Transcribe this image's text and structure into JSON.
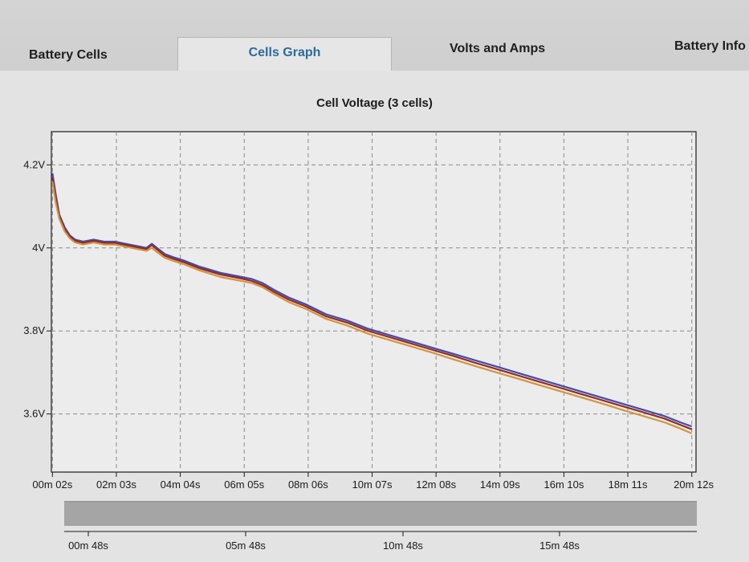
{
  "tabs": [
    {
      "label": "Battery Cells"
    },
    {
      "label": "Cells Graph",
      "active": true
    },
    {
      "label": "Volts and Amps"
    },
    {
      "label": "Battery Info"
    }
  ],
  "colors": {
    "active_tab_text": "#2a6c9a",
    "series_1": "#3e4cb0",
    "series_2": "#9a2a22",
    "series_3": "#d4953a"
  },
  "chart_data": {
    "type": "line",
    "title": "Cell Voltage (3 cells)",
    "xlabel": "",
    "ylabel": "",
    "x_unit": "seconds",
    "ylim": [
      3.46,
      4.28
    ],
    "xlim": [
      0,
      1220
    ],
    "grid": true,
    "y_ticks": [
      {
        "value": 4.2,
        "label": "4.2V"
      },
      {
        "value": 4.0,
        "label": "4V"
      },
      {
        "value": 3.8,
        "label": "3.8V"
      },
      {
        "value": 3.6,
        "label": "3.6V"
      }
    ],
    "x_ticks": [
      {
        "value": 2,
        "label": "00m 02s"
      },
      {
        "value": 123,
        "label": "02m 03s"
      },
      {
        "value": 244,
        "label": "04m 04s"
      },
      {
        "value": 365,
        "label": "06m 05s"
      },
      {
        "value": 486,
        "label": "08m 06s"
      },
      {
        "value": 607,
        "label": "10m 07s"
      },
      {
        "value": 728,
        "label": "12m 08s"
      },
      {
        "value": 849,
        "label": "14m 09s"
      },
      {
        "value": 970,
        "label": "16m 10s"
      },
      {
        "value": 1091,
        "label": "18m 11s"
      },
      {
        "value": 1212,
        "label": "20m 12s"
      }
    ],
    "series": [
      {
        "color": "#3e4cb0",
        "x": [
          2,
          8,
          15,
          25,
          35,
          45,
          60,
          80,
          100,
          120,
          140,
          160,
          180,
          190,
          200,
          215,
          230,
          250,
          280,
          320,
          360,
          380,
          400,
          420,
          450,
          480,
          520,
          560,
          600,
          640,
          680,
          720,
          760,
          800,
          840,
          880,
          920,
          960,
          1000,
          1040,
          1080,
          1120,
          1160,
          1190,
          1212
        ],
        "values": [
          4.18,
          4.13,
          4.08,
          4.05,
          4.03,
          4.02,
          4.015,
          4.02,
          4.015,
          4.015,
          4.01,
          4.005,
          4.0,
          4.01,
          4.0,
          3.985,
          3.978,
          3.97,
          3.955,
          3.94,
          3.93,
          3.925,
          3.915,
          3.9,
          3.88,
          3.865,
          3.84,
          3.825,
          3.805,
          3.79,
          3.775,
          3.76,
          3.745,
          3.73,
          3.715,
          3.7,
          3.685,
          3.67,
          3.655,
          3.64,
          3.625,
          3.61,
          3.595,
          3.58,
          3.57
        ]
      },
      {
        "color": "#9a2a22",
        "x": [
          2,
          8,
          15,
          25,
          35,
          45,
          60,
          80,
          100,
          120,
          140,
          160,
          180,
          190,
          200,
          215,
          230,
          250,
          280,
          320,
          360,
          380,
          400,
          420,
          450,
          480,
          520,
          560,
          600,
          640,
          680,
          720,
          760,
          800,
          840,
          880,
          920,
          960,
          1000,
          1040,
          1080,
          1120,
          1160,
          1190,
          1212
        ],
        "values": [
          4.17,
          4.12,
          4.075,
          4.045,
          4.027,
          4.017,
          4.012,
          4.017,
          4.012,
          4.012,
          4.007,
          4.002,
          3.997,
          4.007,
          3.996,
          3.981,
          3.974,
          3.966,
          3.951,
          3.936,
          3.926,
          3.92,
          3.91,
          3.895,
          3.875,
          3.86,
          3.835,
          3.82,
          3.8,
          3.785,
          3.77,
          3.755,
          3.74,
          3.724,
          3.709,
          3.694,
          3.679,
          3.664,
          3.649,
          3.634,
          3.619,
          3.604,
          3.589,
          3.574,
          3.563
        ]
      },
      {
        "color": "#d4953a",
        "x": [
          2,
          8,
          15,
          25,
          35,
          45,
          60,
          80,
          100,
          120,
          140,
          160,
          180,
          190,
          200,
          215,
          230,
          250,
          280,
          320,
          360,
          380,
          400,
          420,
          450,
          480,
          520,
          560,
          600,
          640,
          680,
          720,
          760,
          800,
          840,
          880,
          920,
          960,
          1000,
          1040,
          1080,
          1120,
          1160,
          1190,
          1212
        ],
        "values": [
          4.16,
          4.11,
          4.07,
          4.04,
          4.023,
          4.013,
          4.008,
          4.013,
          4.008,
          4.008,
          4.003,
          3.998,
          3.993,
          4.0,
          3.99,
          3.976,
          3.969,
          3.961,
          3.946,
          3.93,
          3.92,
          3.915,
          3.905,
          3.89,
          3.869,
          3.854,
          3.829,
          3.813,
          3.793,
          3.778,
          3.763,
          3.748,
          3.732,
          3.716,
          3.701,
          3.686,
          3.671,
          3.656,
          3.641,
          3.626,
          3.61,
          3.595,
          3.58,
          3.565,
          3.553
        ]
      }
    ]
  },
  "overview": {
    "labels": [
      "00m 48s",
      "05m 48s",
      "10m 48s",
      "15m 48s"
    ]
  }
}
